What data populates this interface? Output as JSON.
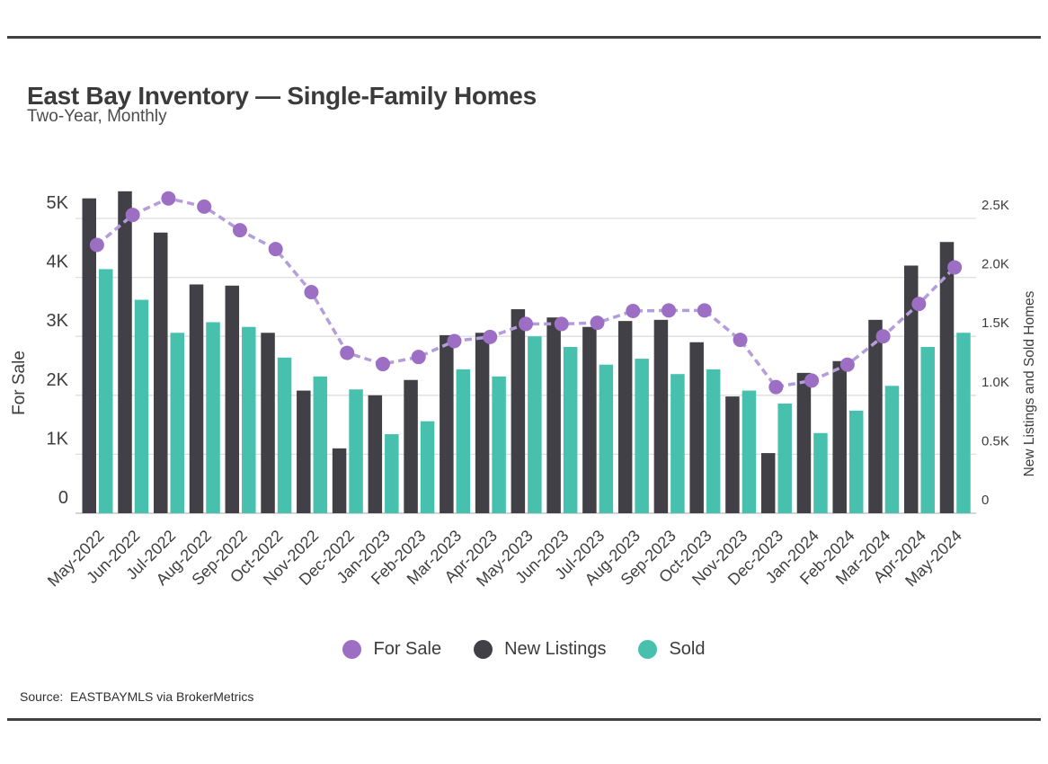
{
  "page": {
    "title": "East Bay Inventory — Single-Family Homes",
    "subtitle": "Two-Year, Monthly",
    "source": "Source:  EASTBAYMLS via BrokerMetrics"
  },
  "chart_data": {
    "type": "bar+line combo",
    "title": "East Bay Inventory — Single-Family Homes",
    "subtitle": "Two-Year, Monthly",
    "categories": [
      "May-2022",
      "Jun-2022",
      "Jul-2022",
      "Aug-2022",
      "Sep-2022",
      "Oct-2022",
      "Nov-2022",
      "Dec-2022",
      "Jan-2023",
      "Feb-2023",
      "Mar-2023",
      "Apr-2023",
      "May-2023",
      "Jun-2023",
      "Jul-2023",
      "Aug-2023",
      "Sep-2023",
      "Oct-2023",
      "Nov-2023",
      "Dec-2023",
      "Jan-2024",
      "Feb-2024",
      "Mar-2024",
      "Apr-2024",
      "May-2024"
    ],
    "series": [
      {
        "name": "For Sale",
        "type": "line",
        "axis": "left",
        "color": "#9C6FC4",
        "line_color": "#B49DDA",
        "line_style": "dashed",
        "values": [
          4550,
          5060,
          5340,
          5200,
          4800,
          4480,
          3750,
          2720,
          2530,
          2650,
          2920,
          2990,
          3210,
          3210,
          3230,
          3430,
          3440,
          3440,
          2940,
          2140,
          2250,
          2520,
          3000,
          3550,
          4170
        ]
      },
      {
        "name": "New Listings",
        "type": "bar",
        "axis": "right",
        "color": "#414046",
        "values": [
          2670,
          2730,
          2380,
          1940,
          1930,
          1530,
          1040,
          550,
          1000,
          1130,
          1510,
          1530,
          1730,
          1660,
          1580,
          1630,
          1640,
          1450,
          990,
          510,
          1190,
          1290,
          1640,
          2100,
          2300
        ]
      },
      {
        "name": "Sold",
        "type": "bar",
        "axis": "right",
        "color": "#47C1AE",
        "values": [
          2070,
          1810,
          1530,
          1620,
          1580,
          1320,
          1160,
          1050,
          670,
          780,
          1220,
          1160,
          1500,
          1410,
          1260,
          1310,
          1180,
          1220,
          1040,
          930,
          680,
          870,
          1080,
          1410,
          1530
        ]
      }
    ],
    "left_axis": {
      "title": "For Sale",
      "range": [
        0,
        5000
      ],
      "ticks": [
        "0",
        "1K",
        "2K",
        "3K",
        "4K",
        "5K"
      ]
    },
    "right_axis": {
      "title": "New Listings and Sold Homes",
      "range": [
        0,
        2500
      ],
      "ticks": [
        "0",
        "0.5K",
        "1.0K",
        "1.5K",
        "2.0K",
        "2.5K"
      ]
    },
    "grid": true,
    "legend_position": "bottom"
  }
}
